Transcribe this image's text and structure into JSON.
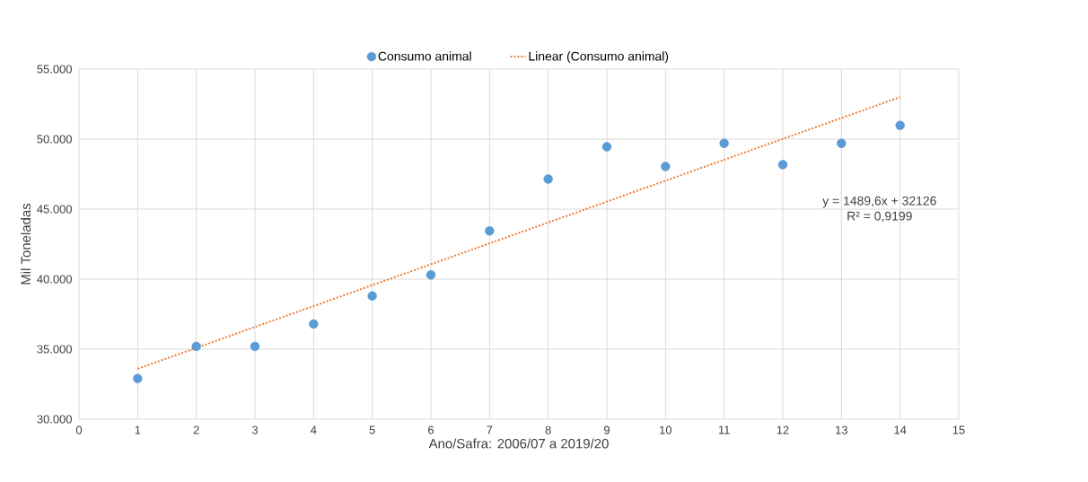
{
  "chart_data": {
    "type": "scatter",
    "xlabel": "Ano/Safra: 2006/07 a 2019/20",
    "ylabel": "Mil Toneladas",
    "x": [
      1,
      2,
      3,
      4,
      5,
      6,
      7,
      8,
      9,
      10,
      11,
      12,
      13,
      14
    ],
    "series": [
      {
        "name": "Consumo animal",
        "color": "#5b9bd5",
        "values": [
          32900,
          35200,
          35200,
          36800,
          38800,
          40300,
          43450,
          47150,
          49450,
          48050,
          49700,
          48180,
          49700,
          50980
        ]
      },
      {
        "name": "Linear (Consumo animal)",
        "type": "line",
        "color": "#ed7d31",
        "line_style": "dotted",
        "marker": "none",
        "x": [
          1,
          14
        ],
        "values": [
          33600,
          53000
        ]
      }
    ],
    "xlim": [
      0,
      15
    ],
    "xticks": [
      0,
      1,
      2,
      3,
      4,
      5,
      6,
      7,
      8,
      9,
      10,
      11,
      12,
      13,
      14,
      15
    ],
    "ylim": [
      30000,
      55000
    ],
    "yticks": [
      {
        "value": 30000,
        "label": "30.000"
      },
      {
        "value": 35000,
        "label": "35.000"
      },
      {
        "value": 40000,
        "label": "40.000"
      },
      {
        "value": 45000,
        "label": "45.000"
      },
      {
        "value": 50000,
        "label": "50.000"
      },
      {
        "value": 55000,
        "label": "55.000"
      }
    ],
    "annotations": [
      "y = 1489,6x + 32126",
      "R² = 0,9199"
    ],
    "grid": true,
    "legend": "top",
    "marker": "circle"
  }
}
